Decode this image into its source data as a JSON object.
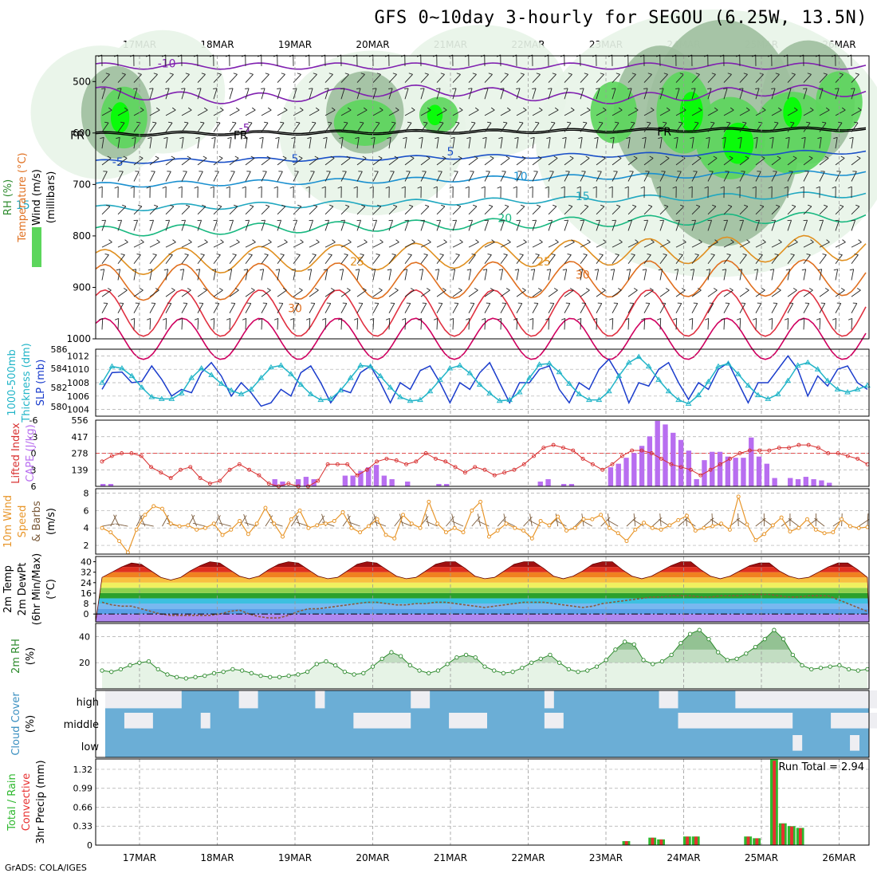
{
  "title": "GFS 0~10day 3-hourly for SEGOU (6.25W, 13.5N)",
  "footer": "GrADS: COLA/IGES",
  "dates": [
    "17MAR",
    "18MAR",
    "19MAR",
    "20MAR",
    "21MAR",
    "22MAR",
    "23MAR",
    "24MAR",
    "25MAR",
    "26MAR"
  ],
  "colors": {
    "rh_light": "#e8f4e8",
    "rh_mid": "#9fbf9f",
    "rh_green": "#5cd65c",
    "rh_bright": "#00ff00",
    "slp": "#1a3ccc",
    "thickness": "#22b5c8",
    "lifted": "#d83030",
    "cape": "#b86ef0",
    "wind_speed": "#e8962a",
    "barb": "#7a5a3a",
    "rh2m": "#2e8b2e",
    "cloud": "#6baed6",
    "precip_total": "#2eb82e",
    "precip_conv": "#e83030"
  },
  "chart_data": [
    {
      "type": "heatmap",
      "id": "upper",
      "ylabels": [
        {
          "text": "RH (%)",
          "color": "#2e8b2e"
        },
        {
          "text": "Temperature (°C)",
          "color": "#e07020"
        },
        {
          "text": "Wind (m/s)",
          "color": "#000"
        },
        {
          "text": "(millibars)",
          "color": "#000"
        }
      ],
      "y_ticks": [
        500,
        600,
        700,
        800,
        900,
        1000
      ],
      "ylim": [
        450,
        1000
      ],
      "contour_labels": [
        {
          "text": "-10",
          "t": 0.35,
          "p": 465,
          "color": "#8020b0"
        },
        {
          "text": "-5",
          "t": 1.35,
          "p": 590,
          "color": "#8020b0"
        },
        {
          "text": "FR",
          "t": -0.8,
          "p": 604,
          "color": "#000"
        },
        {
          "text": "FR",
          "t": 1.3,
          "p": 604,
          "color": "#000"
        },
        {
          "text": "FR",
          "t": 6.75,
          "p": 597,
          "color": "#000"
        },
        {
          "text": "-5",
          "t": -0.28,
          "p": 656,
          "color": "#1a50c8"
        },
        {
          "text": "5",
          "t": 2.0,
          "p": 650,
          "color": "#1a50c8"
        },
        {
          "text": "5",
          "t": 4.0,
          "p": 636,
          "color": "#1a50c8"
        },
        {
          "text": "10",
          "t": 4.9,
          "p": 684,
          "color": "#1a90d0"
        },
        {
          "text": "15",
          "t": -1.5,
          "p": 740,
          "color": "#20a8c0"
        },
        {
          "text": "15",
          "t": 5.7,
          "p": 723,
          "color": "#20a8c0"
        },
        {
          "text": "20",
          "t": -2.5,
          "p": 788,
          "color": "#18b880"
        },
        {
          "text": "20",
          "t": 4.7,
          "p": 765,
          "color": "#18b880"
        },
        {
          "text": "25",
          "t": 2.8,
          "p": 850,
          "color": "#e09020"
        },
        {
          "text": "25",
          "t": 5.2,
          "p": 850,
          "color": "#e09020"
        },
        {
          "text": "30",
          "t": 2.0,
          "p": 940,
          "color": "#e07020"
        },
        {
          "text": "30",
          "t": 5.7,
          "p": 875,
          "color": "#e07020"
        }
      ]
    },
    {
      "type": "line",
      "id": "slp",
      "ylabels": [
        {
          "text": "1000-500mb",
          "color": "#22b5c8"
        },
        {
          "text": "Thickness (dm)",
          "color": "#22b5c8"
        },
        {
          "text": "SLP (mb)",
          "color": "#1a3ccc"
        }
      ],
      "left_ticks": [
        580,
        582,
        584,
        586
      ],
      "right_ticks": [
        1004,
        1006,
        1008,
        1010,
        1012
      ],
      "series": [
        {
          "axis": "right",
          "values": [
            1007,
            1009.5,
            1009.6,
            1008,
            1008.2,
            1010.5,
            1008.5,
            1006,
            1007,
            1006.5,
            1009.5,
            1011,
            1009,
            1006,
            1008,
            1006.5,
            1004.5,
            1005,
            1007,
            1006,
            1009.5,
            1010.5,
            1008,
            1005,
            1007,
            1006.5,
            1009.5,
            1010.5,
            1008,
            1005,
            1008,
            1007,
            1009.8,
            1010.5,
            1008,
            1005,
            1008,
            1007,
            1009.5,
            1011,
            1008,
            1005,
            1008,
            1008,
            1010,
            1010.5,
            1007,
            1005,
            1008,
            1007,
            1010,
            1011.5,
            1009,
            1005,
            1008,
            1007.5,
            1010,
            1011,
            1008,
            1005.5,
            1008,
            1007,
            1010,
            1011,
            1008,
            1005,
            1008,
            1008,
            1010,
            1012,
            1010,
            1006,
            1009,
            1007.5,
            1010,
            1010.5,
            1008,
            1007
          ]
        },
        {
          "axis": "left",
          "values": [
            582.5,
            584.2,
            584,
            583.2,
            582,
            581,
            580.8,
            580.8,
            581.4,
            583,
            584,
            583.3,
            582.4,
            581.7,
            581.3,
            581.8,
            583,
            584.1,
            584.3,
            583.4,
            582.3,
            581.3,
            580.7,
            580.8,
            581.7,
            583,
            584.3,
            584.2,
            583.2,
            582,
            581,
            580.6,
            580.7,
            581.6,
            582.8,
            584,
            584.3,
            583.5,
            582.3,
            581.4,
            580.6,
            580.7,
            581.5,
            583,
            584.4,
            584.5,
            583.6,
            582.4,
            581.3,
            580.7,
            580.7,
            581.6,
            583.2,
            584.6,
            585.2,
            584.2,
            582.8,
            581.6,
            580.7,
            580.3,
            581.2,
            582.6,
            584.2,
            584.5,
            583.4,
            582.2,
            581.2,
            580.8,
            581.3,
            582.7,
            584.3,
            584.6,
            583.9,
            582.7,
            581.8,
            581.5,
            581.8,
            582.2
          ]
        }
      ]
    },
    {
      "type": "bar",
      "id": "cape",
      "ylabels": [
        {
          "text": "Lifted Index",
          "color": "#d83030"
        },
        {
          "text": "CAPE (J/kg)",
          "color": "#b86ef0"
        }
      ],
      "left_ticks": [
        "-6",
        "-3",
        "0",
        "3",
        "6"
      ],
      "right_ticks": [
        "139",
        "278",
        "417",
        "556"
      ],
      "cape": [
        20,
        20,
        0,
        0,
        0,
        0,
        0,
        0,
        0,
        0,
        0,
        0,
        0,
        0,
        0,
        0,
        0,
        0,
        0,
        0,
        0,
        0,
        60,
        40,
        0,
        60,
        80,
        60,
        0,
        0,
        0,
        90,
        90,
        130,
        160,
        180,
        90,
        60,
        0,
        40,
        0,
        0,
        0,
        20,
        20,
        0,
        0,
        0,
        0,
        0,
        0,
        0,
        0,
        0,
        0,
        0,
        40,
        60,
        0,
        20,
        20,
        0,
        0,
        0,
        0,
        160,
        190,
        240,
        280,
        340,
        420,
        550,
        520,
        450,
        390,
        300,
        60,
        220,
        290,
        290,
        250,
        240,
        240,
        410,
        250,
        190,
        70,
        0,
        70,
        60,
        80,
        60,
        50,
        30,
        0,
        0,
        0,
        0
      ],
      "lifted": [
        1.5,
        0.5,
        0,
        0,
        0.5,
        2.5,
        3.5,
        4.5,
        3,
        2.5,
        4.5,
        5.5,
        5,
        3,
        2,
        3,
        4,
        5.5,
        6,
        5.5,
        6,
        6,
        5,
        2,
        2,
        2,
        4,
        3,
        1.5,
        1,
        1.3,
        2,
        1.5,
        0,
        1,
        1.5,
        2.5,
        3.5,
        2.5,
        3,
        4,
        3.5,
        3,
        2,
        0.5,
        -1,
        -1.5,
        -1,
        -0.5,
        1,
        2,
        3,
        2,
        0.5,
        -0.5,
        -0.5,
        0,
        1,
        2,
        2.5,
        3,
        4,
        3,
        2,
        1,
        0,
        -0.5,
        -0.5,
        -0.5,
        -1,
        -1,
        -1.5,
        -1.5,
        -1,
        0,
        0,
        0.5,
        1,
        2
      ]
    },
    {
      "type": "line",
      "id": "wind10m",
      "ylabels": [
        {
          "text": "10m Wind",
          "color": "#e8962a"
        },
        {
          "text": "Speed",
          "color": "#e8962a"
        },
        {
          "text": "& Barbs",
          "color": "#7a5a3a"
        },
        {
          "text": "(m/s)",
          "color": "#000"
        }
      ],
      "y_ticks": [
        2,
        4,
        6,
        8
      ],
      "ylim": [
        1,
        8.5
      ],
      "series": [
        {
          "values": [
            4,
            3.5,
            2.5,
            1.2,
            3.8,
            5.5,
            6.5,
            6.2,
            4.5,
            4.2,
            4.3,
            3.8,
            4,
            4.5,
            3.2,
            3.8,
            4.8,
            3.3,
            4.5,
            6.3,
            4.5,
            3,
            5,
            6,
            4,
            4.3,
            4.5,
            4.8,
            5.8,
            4,
            3.5,
            4.2,
            5,
            3.2,
            2.8,
            5.5,
            4.5,
            4,
            7,
            4.5,
            3.5,
            4,
            3.5,
            6,
            7,
            3,
            3.7,
            4.5,
            4,
            3.7,
            2.8,
            4.8,
            4.3,
            5.3,
            3.7,
            4,
            5,
            5,
            5.5,
            4,
            3.4,
            2.5,
            3.8,
            4.6,
            4,
            3.8,
            4.3,
            4.9,
            5.4,
            3.7,
            4,
            4.2,
            4.5,
            3.8,
            7.6,
            4.4,
            2.6,
            3.3,
            4.3,
            5.2,
            3.6,
            4,
            5,
            3.8,
            3.4,
            3.5,
            5,
            4.2,
            4,
            4.1
          ]
        }
      ]
    },
    {
      "type": "area",
      "id": "temp2m",
      "ylabels": [
        {
          "text": "2m Temp",
          "color": "#000"
        },
        {
          "text": "2m DewPt",
          "color": "#000"
        },
        {
          "text": "(6hr Min/Max)",
          "color": "#000"
        },
        {
          "text": "(°C)",
          "color": "#000"
        }
      ],
      "y_ticks": [
        0,
        8,
        16,
        24,
        32,
        40
      ],
      "ylim": [
        -6,
        44
      ],
      "series": [
        {
          "name": "temp",
          "values": [
            28,
            32,
            36,
            39,
            38,
            33,
            28,
            26,
            28,
            33,
            37,
            40,
            39,
            34,
            29,
            27,
            29,
            34,
            38,
            40,
            39,
            34,
            29,
            27,
            28,
            33,
            38,
            40,
            39,
            34,
            29,
            27,
            28,
            33,
            38,
            40,
            40,
            35,
            29,
            27,
            28,
            33,
            38,
            40,
            40,
            35,
            29,
            27,
            29,
            33,
            38,
            40,
            40,
            34,
            29,
            27,
            29,
            33,
            37,
            40,
            40,
            34,
            29,
            27,
            29,
            33,
            37,
            39,
            39,
            33,
            29,
            27,
            28,
            32,
            36,
            39,
            39,
            34,
            28
          ]
        },
        {
          "name": "dewpt",
          "values": [
            9,
            7,
            6,
            6,
            4,
            2,
            0,
            -1,
            -1,
            -1,
            -1,
            -1,
            0,
            2,
            3,
            0,
            -2,
            -3,
            -3,
            -1,
            2,
            4,
            4,
            5,
            6,
            7,
            8,
            9,
            9,
            8,
            7,
            7,
            8,
            8,
            9,
            9,
            8,
            7,
            6,
            5,
            6,
            7,
            8,
            9,
            9,
            9,
            8,
            7,
            6,
            5,
            6,
            8,
            9,
            10,
            11,
            12,
            13,
            13,
            14,
            14,
            14,
            13,
            13,
            14,
            14,
            14,
            15,
            15,
            15,
            14,
            13,
            13,
            14,
            14,
            14,
            11,
            8,
            5,
            2
          ]
        }
      ]
    },
    {
      "type": "area",
      "id": "rh2m",
      "ylabels": [
        {
          "text": "2m RH",
          "color": "#2e8b2e"
        },
        {
          "text": "(%)",
          "color": "#000"
        }
      ],
      "y_ticks": [
        20,
        40
      ],
      "ylim": [
        0,
        50
      ],
      "series": [
        {
          "values": [
            14,
            13,
            15,
            18,
            20,
            21,
            15,
            11,
            9,
            8,
            9,
            10,
            12,
            13,
            15,
            14,
            12,
            10,
            9,
            9,
            10,
            11,
            13,
            19,
            21,
            18,
            13,
            11,
            12,
            17,
            23,
            28,
            25,
            18,
            14,
            12,
            14,
            19,
            24,
            26,
            24,
            17,
            14,
            12,
            13,
            16,
            20,
            23,
            26,
            20,
            15,
            13,
            14,
            17,
            22,
            30,
            36,
            34,
            22,
            19,
            21,
            26,
            35,
            42,
            45,
            38,
            28,
            22,
            23,
            27,
            32,
            38,
            45,
            38,
            26,
            18,
            15,
            16,
            17,
            18,
            15,
            14,
            15
          ]
        }
      ]
    },
    {
      "type": "bar",
      "id": "cloud",
      "ylabels": [
        {
          "text": "Cloud Cover",
          "color": "#3a8fc0"
        },
        {
          "text": "(%)",
          "color": "#000"
        }
      ],
      "levels": [
        "high",
        "middle",
        "low"
      ]
    },
    {
      "type": "bar",
      "id": "precip",
      "ylabels": [
        {
          "text": "Total / Rain",
          "color": "#2eb82e"
        },
        {
          "text": "Convective",
          "color": "#e83030"
        },
        {
          "text": "3hr Precip (mm)",
          "color": "#000"
        }
      ],
      "y_ticks": [
        "0",
        "0.33",
        "0.66",
        "0.99",
        "1.32"
      ],
      "ylim": [
        0,
        1.5
      ],
      "run_total": "Run Total = 2.94",
      "values": [
        0,
        0,
        0,
        0,
        0,
        0,
        0,
        0,
        0,
        0,
        0,
        0,
        0,
        0,
        0,
        0,
        0,
        0,
        0,
        0,
        0,
        0,
        0,
        0,
        0,
        0,
        0,
        0,
        0,
        0,
        0,
        0,
        0,
        0,
        0,
        0,
        0,
        0,
        0,
        0,
        0,
        0,
        0,
        0,
        0,
        0,
        0,
        0,
        0,
        0,
        0,
        0,
        0,
        0,
        0,
        0,
        0,
        0,
        0,
        0,
        0.07,
        0,
        0,
        0.13,
        0.1,
        0,
        0,
        0.15,
        0.15,
        0,
        0,
        0,
        0,
        0,
        0.15,
        0.12,
        0,
        1.5,
        0.38,
        0.33,
        0.3,
        0,
        0,
        0,
        0,
        0,
        0,
        0
      ]
    }
  ]
}
